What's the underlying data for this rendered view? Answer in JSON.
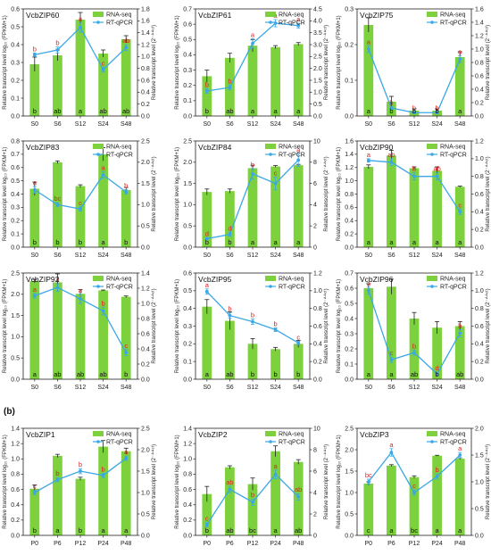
{
  "figure": {
    "section_label": "(b)",
    "legend": {
      "rna": "RNA-seq",
      "qpcr": "RT-qPCR"
    },
    "left_axis_label": "Relative transcript level log₁₀ (FPKM+1)",
    "right_axis_label": "Relative transcript level (2⁻ᐞᐞᶜᵗ)",
    "colors": {
      "bar": "#7dd13d",
      "line": "#3aa8e6",
      "marker": "#3aa8e6",
      "letters_top": "#e02020"
    }
  },
  "chart_data": [
    {
      "type": "bar+line",
      "title": "VcbZIP60",
      "categories": [
        "S0",
        "S6",
        "S12",
        "S24",
        "S48"
      ],
      "left_ticks": [
        "0.0",
        "0.1",
        "0.2",
        "0.3",
        "0.4",
        "0.5",
        "0.6"
      ],
      "ylim_left": [
        0,
        0.6
      ],
      "right_ticks": [
        "0.0",
        "0.2",
        "0.4",
        "0.6",
        "0.8",
        "1.0",
        "1.2",
        "1.4",
        "1.6",
        "1.8"
      ],
      "ylim_right": [
        0,
        1.8
      ],
      "rna": [
        0.29,
        0.34,
        0.54,
        0.35,
        0.43
      ],
      "rna_err": [
        0.04,
        0.03,
        0.04,
        0.02,
        0.02
      ],
      "qpcr": [
        1.03,
        1.11,
        1.49,
        0.78,
        1.15
      ],
      "qpcr_err": [
        0.03,
        0.05,
        0.08,
        0.04,
        0.05
      ],
      "rna_letters": [
        "b",
        "ab",
        "a",
        "ab",
        "ab"
      ],
      "qpcr_letters": [
        "b",
        "b",
        "a",
        "c",
        "ab"
      ]
    },
    {
      "type": "bar+line",
      "title": "VcbZIP61",
      "categories": [
        "S0",
        "S6",
        "S12",
        "S24",
        "S48"
      ],
      "left_ticks": [
        "0.0",
        "0.1",
        "0.2",
        "0.3",
        "0.4",
        "0.5",
        "0.6",
        "0.7"
      ],
      "ylim_left": [
        0,
        0.7
      ],
      "right_ticks": [
        "0.0",
        "0.5",
        "1.0",
        "1.5",
        "2.0",
        "2.5",
        "3.0",
        "3.5",
        "4.0",
        "4.5"
      ],
      "ylim_right": [
        0,
        4.5
      ],
      "rna": [
        0.26,
        0.38,
        0.46,
        0.45,
        0.47
      ],
      "rna_err": [
        0.04,
        0.03,
        0.04,
        0.01,
        0.01
      ],
      "qpcr": [
        1.05,
        1.2,
        3.05,
        3.9,
        3.8
      ],
      "qpcr_err": [
        0.1,
        0.1,
        0.2,
        0.15,
        0.1
      ],
      "rna_letters": [
        "b",
        "ab",
        "a",
        "a",
        "a"
      ],
      "qpcr_letters": [
        "b",
        "b",
        "a",
        "a",
        "a"
      ]
    },
    {
      "type": "bar+line",
      "title": "VcbZIP75",
      "categories": [
        "S0",
        "S6",
        "S12",
        "S24",
        "S48"
      ],
      "left_ticks": [
        "0.0",
        "0.1",
        "0.2",
        "0.3"
      ],
      "ylim_left": [
        0,
        0.3
      ],
      "right_ticks": [
        "0.0",
        "0.2",
        "0.4",
        "0.6",
        "0.8",
        "1.0",
        "1.2",
        "1.4",
        "1.6"
      ],
      "ylim_right": [
        0,
        1.6
      ],
      "rna": [
        0.255,
        0.04,
        0.015,
        0.015,
        0.165
      ],
      "rna_err": [
        0.02,
        0.015,
        0.005,
        0.005,
        0.015
      ],
      "qpcr": [
        1.0,
        0.12,
        0.05,
        0.05,
        0.85
      ],
      "qpcr_err": [
        0.05,
        0.02,
        0.01,
        0.01,
        0.05
      ],
      "rna_letters": [
        "a",
        "b",
        "b",
        "b",
        "a"
      ],
      "qpcr_letters": [
        "a",
        "b",
        "b",
        "b",
        "a"
      ]
    },
    {
      "type": "bar+line",
      "title": "VcbZIP83",
      "categories": [
        "S0",
        "S6",
        "S12",
        "S24",
        "S48"
      ],
      "left_ticks": [
        "0.0",
        "0.1",
        "0.2",
        "0.3",
        "0.4",
        "0.5",
        "0.6",
        "0.7",
        "0.8"
      ],
      "ylim_left": [
        0,
        0.8
      ],
      "right_ticks": [
        "0.0",
        "0.5",
        "1.0",
        "1.5",
        "2.0",
        "2.5"
      ],
      "ylim_right": [
        0,
        2.5
      ],
      "rna": [
        0.44,
        0.64,
        0.46,
        0.7,
        0.43
      ],
      "rna_err": [
        0.05,
        0.01,
        0.01,
        0.05,
        0.02
      ],
      "qpcr": [
        1.35,
        1.0,
        0.9,
        1.7,
        1.3
      ],
      "qpcr_err": [
        0.08,
        0.05,
        0.05,
        0.08,
        0.05
      ],
      "rna_letters": [
        "b",
        "b",
        "b",
        "a",
        "b"
      ],
      "qpcr_letters": [
        "a",
        "bc",
        "c",
        "a",
        "b"
      ]
    },
    {
      "type": "bar+line",
      "title": "VcbZIP84",
      "categories": [
        "S0",
        "S6",
        "S12",
        "S24",
        "S48"
      ],
      "left_ticks": [
        "0.0",
        "0.5",
        "1.0",
        "1.5",
        "2.0",
        "2.5"
      ],
      "ylim_left": [
        0,
        2.5
      ],
      "right_ticks": [
        "0",
        "2",
        "4",
        "6",
        "8",
        "10"
      ],
      "ylim_right": [
        0,
        10
      ],
      "rna": [
        1.3,
        1.32,
        1.86,
        1.9,
        1.93
      ],
      "rna_err": [
        0.07,
        0.05,
        0.07,
        0.02,
        0.02
      ],
      "qpcr": [
        0.8,
        1.2,
        6.9,
        6.0,
        8.2
      ],
      "qpcr_err": [
        0.1,
        0.2,
        0.5,
        0.6,
        0.6
      ],
      "rna_letters": [
        "b",
        "b",
        "a",
        "a",
        "a"
      ],
      "qpcr_letters": [
        "d",
        "d",
        "b",
        "c",
        "a"
      ]
    },
    {
      "type": "bar+line",
      "title": "VcbZIP90",
      "categories": [
        "S0",
        "S6",
        "S12",
        "S24",
        "S48"
      ],
      "left_ticks": [
        "0.0",
        "0.2",
        "0.4",
        "0.6",
        "0.8",
        "1.0",
        "1.2",
        "1.4",
        "1.6"
      ],
      "ylim_left": [
        0,
        1.6
      ],
      "right_ticks": [
        "0.0",
        "0.2",
        "0.4",
        "0.6",
        "0.8",
        "1.0",
        "1.2"
      ],
      "ylim_right": [
        0,
        1.2
      ],
      "rna": [
        1.21,
        1.38,
        1.19,
        1.15,
        0.91
      ],
      "rna_err": [
        0.03,
        0.08,
        0.02,
        0.06,
        0.01
      ],
      "qpcr": [
        0.98,
        0.96,
        0.8,
        0.8,
        0.4
      ],
      "qpcr_err": [
        0.02,
        0.04,
        0.04,
        0.04,
        0.03
      ],
      "rna_letters": [
        "a",
        "a",
        "a",
        "a",
        "a"
      ],
      "qpcr_letters": [
        "a",
        "ab",
        "b",
        "ab",
        "c"
      ]
    },
    {
      "type": "bar+line",
      "title": "VcbZIP92",
      "categories": [
        "S0",
        "S6",
        "S12",
        "S24",
        "S48"
      ],
      "left_ticks": [
        "0.0",
        "0.5",
        "1.0",
        "1.5",
        "2.0",
        "2.5"
      ],
      "ylim_left": [
        0,
        2.5
      ],
      "right_ticks": [
        "0.0",
        "0.2",
        "0.4",
        "0.6",
        "0.8",
        "1.0",
        "1.2",
        "1.4"
      ],
      "ylim_right": [
        0,
        1.4
      ],
      "rna": [
        2.31,
        2.28,
        2.01,
        2.09,
        1.94
      ],
      "rna_err": [
        0.04,
        0.2,
        0.1,
        0.01,
        0.02
      ],
      "qpcr": [
        1.1,
        1.21,
        1.06,
        0.9,
        0.35
      ],
      "qpcr_err": [
        0.03,
        0.05,
        0.06,
        0.05,
        0.04
      ],
      "rna_letters": [
        "a",
        "ab",
        "ab",
        "ab",
        "b"
      ],
      "qpcr_letters": [
        "a",
        "a",
        "a",
        "b",
        "c"
      ]
    },
    {
      "type": "bar+line",
      "title": "VcbZIP95",
      "categories": [
        "S0",
        "S6",
        "S12",
        "S24",
        "S48"
      ],
      "left_ticks": [
        "0.0",
        "0.1",
        "0.2",
        "0.3",
        "0.4",
        "0.5",
        "0.6"
      ],
      "ylim_left": [
        0,
        0.6
      ],
      "right_ticks": [
        "0.0",
        "0.2",
        "0.4",
        "0.6",
        "0.8",
        "1.0",
        "1.2"
      ],
      "ylim_right": [
        0,
        1.2
      ],
      "rna": [
        0.41,
        0.33,
        0.2,
        0.17,
        0.2
      ],
      "rna_err": [
        0.04,
        0.05,
        0.03,
        0.01,
        0.02
      ],
      "qpcr": [
        0.99,
        0.72,
        0.65,
        0.56,
        0.41
      ],
      "qpcr_err": [
        0.03,
        0.03,
        0.03,
        0.02,
        0.02
      ],
      "rna_letters": [
        "a",
        "ab",
        "b",
        "b",
        "b"
      ],
      "qpcr_letters": [
        "a",
        "b",
        "b",
        "b",
        "c"
      ]
    },
    {
      "type": "bar+line",
      "title": "VcbZIP96",
      "categories": [
        "S0",
        "S6",
        "S12",
        "S24",
        "S48"
      ],
      "left_ticks": [
        "0.0",
        "0.1",
        "0.2",
        "0.3",
        "0.4",
        "0.5",
        "0.6",
        "0.7"
      ],
      "ylim_left": [
        0,
        0.7
      ],
      "right_ticks": [
        "0.0",
        "0.2",
        "0.4",
        "0.6",
        "0.8",
        "1.0",
        "1.2"
      ],
      "ylim_right": [
        0,
        1.2
      ],
      "rna": [
        0.6,
        0.61,
        0.4,
        0.34,
        0.35
      ],
      "rna_err": [
        0.03,
        0.05,
        0.04,
        0.04,
        0.03
      ],
      "qpcr": [
        1.0,
        0.22,
        0.3,
        0.06,
        0.52
      ],
      "qpcr_err": [
        0.04,
        0.03,
        0.03,
        0.02,
        0.04
      ],
      "rna_letters": [
        "a",
        "a",
        "ab",
        "b",
        "ab"
      ],
      "qpcr_letters": [
        "a",
        "c",
        "b",
        "d",
        "b"
      ]
    },
    {
      "type": "bar+line",
      "title": "VcbZIP1",
      "categories": [
        "P0",
        "P6",
        "P12",
        "P24",
        "P48"
      ],
      "left_ticks": [
        "0.0",
        "0.2",
        "0.4",
        "0.6",
        "0.8",
        "1.0",
        "1.2",
        "1.4"
      ],
      "ylim_left": [
        0,
        1.4
      ],
      "right_ticks": [
        "0.0",
        "0.5",
        "1.0",
        "1.5",
        "2.0",
        "2.5"
      ],
      "ylim_right": [
        0,
        2.5
      ],
      "rna": [
        0.61,
        1.04,
        0.74,
        1.16,
        1.1
      ],
      "rna_err": [
        0.05,
        0.02,
        0.02,
        0.08,
        0.04
      ],
      "qpcr": [
        1.0,
        1.3,
        1.5,
        1.4,
        1.8
      ],
      "qpcr_err": [
        0.05,
        0.05,
        0.06,
        0.05,
        0.05
      ],
      "rna_letters": [
        "b",
        "a",
        "b",
        "a",
        "a"
      ],
      "qpcr_letters": [
        "c",
        "b",
        "b",
        "b",
        "a"
      ]
    },
    {
      "type": "bar+line",
      "title": "VcbZIP2",
      "categories": [
        "P0",
        "P6",
        "P12",
        "P24",
        "P48"
      ],
      "left_ticks": [
        "0.0",
        "0.2",
        "0.4",
        "0.6",
        "0.8",
        "1.0",
        "1.2",
        "1.4"
      ],
      "ylim_left": [
        0,
        1.4
      ],
      "right_ticks": [
        "0",
        "2",
        "4",
        "6",
        "8",
        "10"
      ],
      "ylim_right": [
        0,
        10
      ],
      "rna": [
        0.54,
        0.89,
        0.67,
        1.1,
        0.96
      ],
      "rna_err": [
        0.1,
        0.02,
        0.08,
        0.07,
        0.03
      ],
      "qpcr": [
        1.0,
        4.3,
        3.1,
        5.7,
        3.6
      ],
      "qpcr_err": [
        0.2,
        0.3,
        0.3,
        0.4,
        0.3
      ],
      "rna_letters": [
        "b",
        "ab",
        "bc",
        "a",
        "ab"
      ],
      "qpcr_letters": [
        "c",
        "ab",
        "b",
        "a",
        "ab"
      ]
    },
    {
      "type": "bar+line",
      "title": "VcbZIP3",
      "categories": [
        "P0",
        "P6",
        "P12",
        "P24",
        "P48"
      ],
      "left_ticks": [
        "0.0",
        "0.5",
        "1.0",
        "1.5",
        "2.0",
        "2.5"
      ],
      "ylim_left": [
        0,
        2.5
      ],
      "right_ticks": [
        "0.0",
        "0.5",
        "1.0",
        "1.5",
        "2.0"
      ],
      "ylim_right": [
        0,
        2.0
      ],
      "rna": [
        1.21,
        1.63,
        1.36,
        1.86,
        1.79
      ],
      "rna_err": [
        0.04,
        0.02,
        0.03,
        0.01,
        0.02
      ],
      "qpcr": [
        1.0,
        1.55,
        0.8,
        1.1,
        1.5
      ],
      "qpcr_err": [
        0.05,
        0.07,
        0.05,
        0.05,
        0.05
      ],
      "rna_letters": [
        "c",
        "a",
        "bc",
        "a",
        "a"
      ],
      "qpcr_letters": [
        "bc",
        "a",
        "c",
        "b",
        "a"
      ]
    }
  ]
}
